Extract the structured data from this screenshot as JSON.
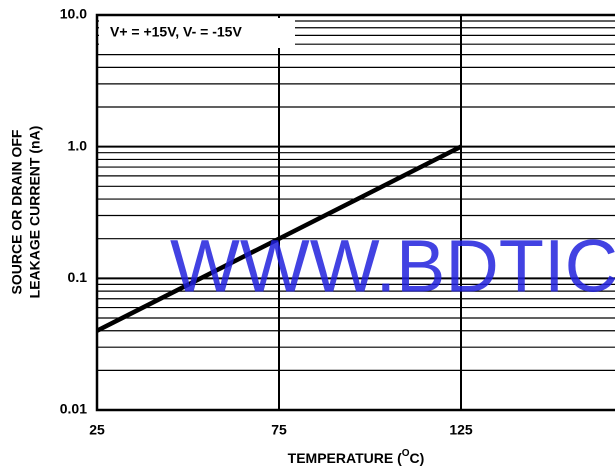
{
  "chart_data": {
    "type": "line",
    "annotation": "V+ = +15V, V- = -15V",
    "watermark": "WWW.BDTIC.",
    "ylabel": [
      "SOURCE OR DRAIN OFF",
      "LEAKAGE CURRENT (nA)"
    ],
    "xlabel": [
      "TEMPERATURE (",
      "O",
      "C)"
    ],
    "x": [
      25,
      125
    ],
    "series": [
      {
        "color": "#000000",
        "values": [
          0.04,
          1.0
        ]
      }
    ],
    "xlim": [
      25,
      175
    ],
    "xticks": [
      25,
      75,
      125
    ],
    "ylim": [
      0.01,
      10
    ],
    "yticks": [
      {
        "value": 0.01,
        "label": "0.01"
      },
      0.1,
      {
        "value": 1,
        "label": "1.0"
      },
      {
        "value": 10,
        "label": "10.0"
      }
    ],
    "ylog": true,
    "grid": true,
    "minor_grid": true
  }
}
